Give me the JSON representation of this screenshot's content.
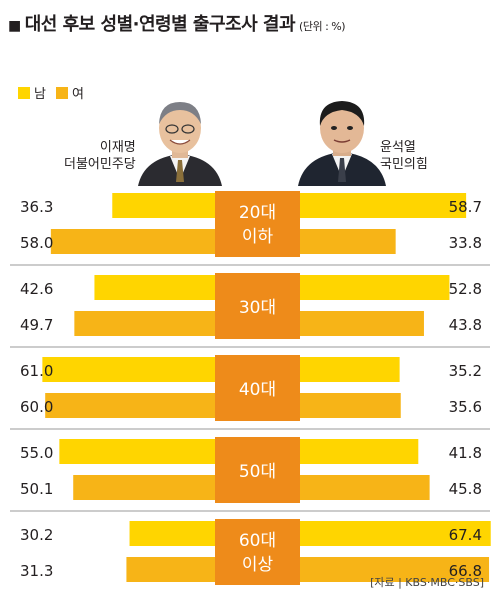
{
  "title": "대선 후보 성별·연령별 출구조사 결과",
  "title_marker": "■",
  "unit": "(단위 : %)",
  "legend": [
    {
      "label": "남",
      "color": "#ffd500"
    },
    {
      "label": "여",
      "color": "#f7b417"
    }
  ],
  "candidates": {
    "left": {
      "name": "이재명",
      "party": "더불어민주당"
    },
    "right": {
      "name": "윤석열",
      "party": "국민의힘"
    }
  },
  "source": "[자료 | KBS·MBC·SBS]",
  "colors": {
    "male": "#ffd500",
    "female": "#f7b417",
    "center": "#ee8b1a",
    "divider": "#9a9a9a",
    "label_text": "#ffffff"
  },
  "chart_data": {
    "type": "bar",
    "title": "대선 후보 성별·연령별 출구조사 결과",
    "groups": [
      {
        "label_lines": [
          "20대",
          "이하"
        ],
        "male": {
          "lee": 36.3,
          "yoon": 58.7
        },
        "female": {
          "lee": 58.0,
          "yoon": 33.8
        }
      },
      {
        "label_lines": [
          "30대"
        ],
        "male": {
          "lee": 42.6,
          "yoon": 52.8
        },
        "female": {
          "lee": 49.7,
          "yoon": 43.8
        }
      },
      {
        "label_lines": [
          "40대"
        ],
        "male": {
          "lee": 61.0,
          "yoon": 35.2
        },
        "female": {
          "lee": 60.0,
          "yoon": 35.6
        }
      },
      {
        "label_lines": [
          "50대"
        ],
        "male": {
          "lee": 55.0,
          "yoon": 41.8
        },
        "female": {
          "lee": 50.1,
          "yoon": 45.8
        }
      },
      {
        "label_lines": [
          "60대",
          "이상"
        ],
        "male": {
          "lee": 30.2,
          "yoon": 67.4
        },
        "female": {
          "lee": 31.3,
          "yoon": 66.8
        }
      }
    ]
  }
}
